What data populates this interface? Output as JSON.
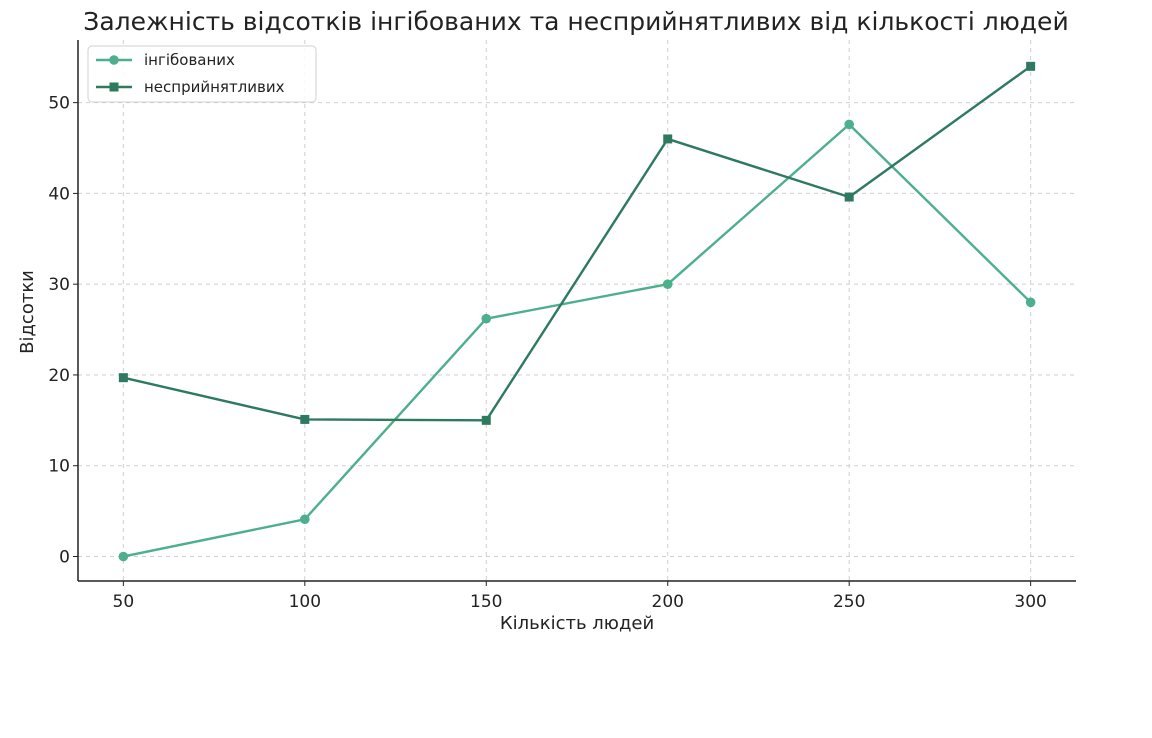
{
  "chart_data": {
    "type": "line",
    "title": "Залежність відсотків інгібованих та несприйнятливих від кількості людей",
    "xlabel": "Кількість людей",
    "ylabel": "Відсотки",
    "x": [
      50,
      100,
      150,
      200,
      250,
      300
    ],
    "xlim": [
      37.5,
      312.5
    ],
    "ylim": [
      -2.7,
      56.9
    ],
    "xticks": [
      "50",
      "100",
      "150",
      "200",
      "250",
      "300"
    ],
    "yticks": [
      "0",
      "10",
      "20",
      "30",
      "40",
      "50"
    ],
    "grid": true,
    "legend_position": "top-left",
    "series": [
      {
        "name": "інгібованих",
        "values": [
          0,
          4.1,
          26.2,
          30.0,
          47.6,
          28.0
        ],
        "color": "#4daf8c",
        "marker": "circle"
      },
      {
        "name": "несприйнятливих",
        "values": [
          19.7,
          15.1,
          15.0,
          46.0,
          39.6,
          54.0
        ],
        "color": "#2e7a5e",
        "marker": "square"
      }
    ]
  }
}
